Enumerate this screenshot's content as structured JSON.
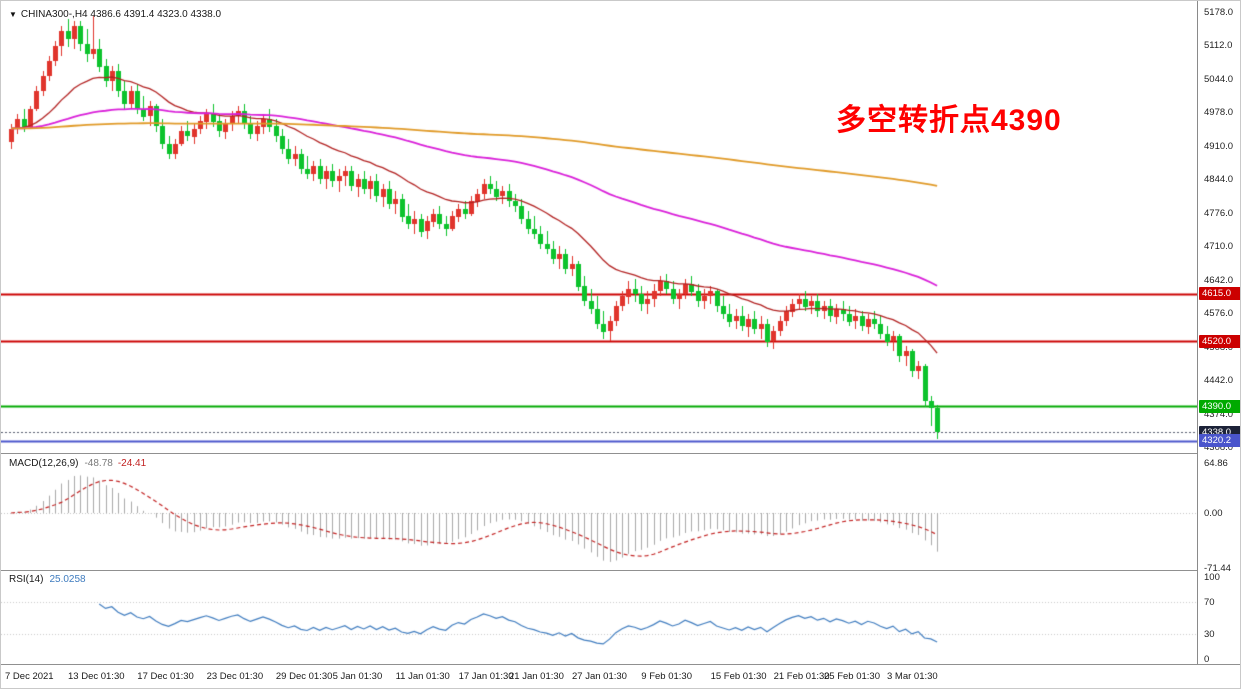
{
  "colors": {
    "background": "#ffffff",
    "up_candle": "#e0342c",
    "down_candle": "#0cc32c",
    "ma_fast": "#b22222",
    "ma_mid": "#d920d9",
    "ma_slow": "#e09a28",
    "macd_histogram": "#a8a8a8",
    "macd_signal": "#c22222",
    "rsi_line": "#3f7cbf",
    "level_red": "#cc0000",
    "level_green": "#00aa00",
    "level_blue": "#4a55cc",
    "annotation": "#ff0000",
    "axis_text": "#222222"
  },
  "symbol_info": {
    "expand_icon": "▼",
    "text": "CHINA300-,H4 4386.6 4391.4 4323.0 4338.0"
  },
  "annotation": {
    "text": "多空转折点4390",
    "color": "#ff0000"
  },
  "main_pane": {
    "y_ticks": [
      "5178.0",
      "5112.0",
      "5044.0",
      "4978.0",
      "4910.0",
      "4844.0",
      "4776.0",
      "4710.0",
      "4642.0",
      "4576.0",
      "4508.0",
      "4442.0",
      "4374.0",
      "4308.0"
    ],
    "badges": [
      {
        "label": "4615.0",
        "price": 4615.0,
        "color": "#cc0000"
      },
      {
        "label": "4520.0",
        "price": 4520.0,
        "color": "#cc0000"
      },
      {
        "label": "4390.0",
        "price": 4390.0,
        "color": "#00aa00"
      },
      {
        "label": "4338.0",
        "price": 4338.0,
        "color": "#1c2238"
      },
      {
        "label": "4320.2",
        "price": 4320.2,
        "color": "#4a55cc"
      }
    ]
  },
  "macd_pane": {
    "label": "MACD(12,26,9)",
    "value_main": "-48.78",
    "value_signal": "-24.41",
    "y_ticks": [
      "64.86",
      "0.00",
      "-71.44"
    ]
  },
  "rsi_pane": {
    "label": "RSI(14)",
    "value": "25.0258",
    "y_ticks": [
      "100",
      "70",
      "30",
      "0"
    ]
  },
  "x_axis": {
    "labels": [
      {
        "text": "7 Dec 2021",
        "bar": 0
      },
      {
        "text": "13 Dec 01:30",
        "bar": 10
      },
      {
        "text": "17 Dec 01:30",
        "bar": 21
      },
      {
        "text": "23 Dec 01:30",
        "bar": 32
      },
      {
        "text": "29 Dec 01:30",
        "bar": 43
      },
      {
        "text": "5 Jan 01:30",
        "bar": 52
      },
      {
        "text": "11 Jan 01:30",
        "bar": 62
      },
      {
        "text": "17 Jan 01:30",
        "bar": 72
      },
      {
        "text": "21 Jan 01:30",
        "bar": 80
      },
      {
        "text": "27 Jan 01:30",
        "bar": 90
      },
      {
        "text": "9 Feb 01:30",
        "bar": 101
      },
      {
        "text": "15 Feb 01:30",
        "bar": 112
      },
      {
        "text": "21 Feb 01:30",
        "bar": 122
      },
      {
        "text": "25 Feb 01:30",
        "bar": 130
      },
      {
        "text": "3 Mar 01:30",
        "bar": 140
      }
    ]
  },
  "chart_data": {
    "type": "candlestick",
    "symbol": "CHINA300-",
    "timeframe": "H4",
    "current_bar": {
      "open": 4386.6,
      "high": 4391.4,
      "low": 4323.0,
      "close": 4338.0
    },
    "y_range": [
      4296,
      5200
    ],
    "candle_convention": "red=up, green=down",
    "candles": [
      [
        4920,
        4955,
        4905,
        4945
      ],
      [
        4945,
        4975,
        4935,
        4965
      ],
      [
        4965,
        4985,
        4940,
        4950
      ],
      [
        4950,
        4990,
        4945,
        4985
      ],
      [
        4985,
        5030,
        4980,
        5020
      ],
      [
        5020,
        5060,
        5010,
        5050
      ],
      [
        5050,
        5090,
        5040,
        5080
      ],
      [
        5080,
        5120,
        5070,
        5110
      ],
      [
        5110,
        5150,
        5090,
        5140
      ],
      [
        5140,
        5165,
        5110,
        5125
      ],
      [
        5125,
        5160,
        5105,
        5150
      ],
      [
        5150,
        5160,
        5100,
        5115
      ],
      [
        5115,
        5145,
        5080,
        5095
      ],
      [
        5095,
        5170,
        5085,
        5105
      ],
      [
        5105,
        5125,
        5060,
        5070
      ],
      [
        5070,
        5085,
        5030,
        5040
      ],
      [
        5040,
        5070,
        5020,
        5060
      ],
      [
        5060,
        5075,
        5010,
        5020
      ],
      [
        5020,
        5040,
        4985,
        4995
      ],
      [
        4995,
        5030,
        4985,
        5020
      ],
      [
        5020,
        5035,
        4975,
        4985
      ],
      [
        4985,
        5010,
        4960,
        4970
      ],
      [
        4970,
        5000,
        4950,
        4990
      ],
      [
        4990,
        4995,
        4940,
        4950
      ],
      [
        4950,
        4965,
        4905,
        4915
      ],
      [
        4915,
        4930,
        4885,
        4895
      ],
      [
        4895,
        4925,
        4885,
        4915
      ],
      [
        4915,
        4950,
        4910,
        4940
      ],
      [
        4940,
        4960,
        4920,
        4930
      ],
      [
        4930,
        4955,
        4915,
        4945
      ],
      [
        4945,
        4970,
        4935,
        4960
      ],
      [
        4960,
        4985,
        4945,
        4975
      ],
      [
        4975,
        4995,
        4950,
        4960
      ],
      [
        4960,
        4975,
        4930,
        4940
      ],
      [
        4940,
        4965,
        4925,
        4955
      ],
      [
        4955,
        4980,
        4940,
        4970
      ],
      [
        4970,
        4990,
        4955,
        4980
      ],
      [
        4980,
        4995,
        4945,
        4955
      ],
      [
        4955,
        4970,
        4925,
        4935
      ],
      [
        4935,
        4960,
        4920,
        4950
      ],
      [
        4950,
        4975,
        4935,
        4965
      ],
      [
        4965,
        4985,
        4940,
        4950
      ],
      [
        4950,
        4965,
        4920,
        4930
      ],
      [
        4930,
        4945,
        4895,
        4905
      ],
      [
        4905,
        4925,
        4875,
        4885
      ],
      [
        4885,
        4910,
        4870,
        4895
      ],
      [
        4895,
        4905,
        4855,
        4865
      ],
      [
        4865,
        4890,
        4845,
        4855
      ],
      [
        4855,
        4880,
        4840,
        4870
      ],
      [
        4870,
        4885,
        4835,
        4845
      ],
      [
        4845,
        4870,
        4825,
        4860
      ],
      [
        4860,
        4875,
        4830,
        4840
      ],
      [
        4840,
        4865,
        4820,
        4850
      ],
      [
        4850,
        4870,
        4830,
        4860
      ],
      [
        4860,
        4870,
        4820,
        4830
      ],
      [
        4830,
        4855,
        4810,
        4845
      ],
      [
        4845,
        4860,
        4815,
        4825
      ],
      [
        4825,
        4850,
        4805,
        4840
      ],
      [
        4840,
        4855,
        4800,
        4810
      ],
      [
        4810,
        4835,
        4790,
        4825
      ],
      [
        4825,
        4840,
        4785,
        4795
      ],
      [
        4795,
        4820,
        4775,
        4805
      ],
      [
        4805,
        4815,
        4760,
        4770
      ],
      [
        4770,
        4795,
        4745,
        4755
      ],
      [
        4755,
        4780,
        4735,
        4765
      ],
      [
        4765,
        4775,
        4730,
        4740
      ],
      [
        4740,
        4770,
        4725,
        4760
      ],
      [
        4760,
        4785,
        4750,
        4775
      ],
      [
        4775,
        4790,
        4745,
        4755
      ],
      [
        4755,
        4770,
        4730,
        4745
      ],
      [
        4745,
        4780,
        4740,
        4770
      ],
      [
        4770,
        4795,
        4760,
        4785
      ],
      [
        4785,
        4800,
        4765,
        4775
      ],
      [
        4775,
        4810,
        4770,
        4800
      ],
      [
        4800,
        4825,
        4790,
        4815
      ],
      [
        4815,
        4845,
        4805,
        4835
      ],
      [
        4835,
        4850,
        4815,
        4825
      ],
      [
        4825,
        4840,
        4800,
        4810
      ],
      [
        4810,
        4830,
        4795,
        4820
      ],
      [
        4820,
        4835,
        4790,
        4800
      ],
      [
        4800,
        4815,
        4780,
        4790
      ],
      [
        4790,
        4805,
        4755,
        4765
      ],
      [
        4765,
        4780,
        4735,
        4745
      ],
      [
        4745,
        4770,
        4725,
        4735
      ],
      [
        4735,
        4750,
        4705,
        4715
      ],
      [
        4715,
        4740,
        4695,
        4705
      ],
      [
        4705,
        4720,
        4675,
        4685
      ],
      [
        4685,
        4710,
        4665,
        4695
      ],
      [
        4695,
        4705,
        4655,
        4665
      ],
      [
        4665,
        4690,
        4650,
        4675
      ],
      [
        4675,
        4680,
        4620,
        4630
      ],
      [
        4630,
        4650,
        4590,
        4600
      ],
      [
        4600,
        4625,
        4575,
        4585
      ],
      [
        4585,
        4610,
        4545,
        4555
      ],
      [
        4555,
        4580,
        4525,
        4540
      ],
      [
        4540,
        4570,
        4520,
        4560
      ],
      [
        4560,
        4600,
        4550,
        4590
      ],
      [
        4590,
        4620,
        4580,
        4610
      ],
      [
        4610,
        4640,
        4595,
        4625
      ],
      [
        4625,
        4645,
        4600,
        4615
      ],
      [
        4615,
        4630,
        4580,
        4595
      ],
      [
        4595,
        4620,
        4575,
        4605
      ],
      [
        4605,
        4635,
        4590,
        4620
      ],
      [
        4620,
        4650,
        4610,
        4640
      ],
      [
        4640,
        4655,
        4615,
        4625
      ],
      [
        4625,
        4640,
        4595,
        4605
      ],
      [
        4605,
        4625,
        4585,
        4615
      ],
      [
        4615,
        4645,
        4605,
        4635
      ],
      [
        4635,
        4650,
        4610,
        4620
      ],
      [
        4620,
        4635,
        4590,
        4600
      ],
      [
        4600,
        4625,
        4585,
        4610
      ],
      [
        4610,
        4630,
        4595,
        4620
      ],
      [
        4620,
        4625,
        4580,
        4590
      ],
      [
        4590,
        4610,
        4565,
        4575
      ],
      [
        4575,
        4595,
        4550,
        4560
      ],
      [
        4560,
        4585,
        4545,
        4570
      ],
      [
        4570,
        4590,
        4540,
        4550
      ],
      [
        4550,
        4575,
        4530,
        4565
      ],
      [
        4565,
        4580,
        4535,
        4545
      ],
      [
        4545,
        4570,
        4525,
        4555
      ],
      [
        4555,
        4565,
        4510,
        4520
      ],
      [
        4520,
        4550,
        4505,
        4540
      ],
      [
        4540,
        4570,
        4530,
        4560
      ],
      [
        4560,
        4590,
        4550,
        4580
      ],
      [
        4580,
        4605,
        4570,
        4595
      ],
      [
        4595,
        4615,
        4585,
        4605
      ],
      [
        4605,
        4620,
        4580,
        4590
      ],
      [
        4590,
        4610,
        4575,
        4600
      ],
      [
        4600,
        4615,
        4570,
        4580
      ],
      [
        4580,
        4600,
        4565,
        4590
      ],
      [
        4590,
        4605,
        4560,
        4570
      ],
      [
        4570,
        4595,
        4555,
        4585
      ],
      [
        4585,
        4600,
        4560,
        4575
      ],
      [
        4575,
        4590,
        4550,
        4560
      ],
      [
        4560,
        4585,
        4545,
        4570
      ],
      [
        4570,
        4580,
        4540,
        4550
      ],
      [
        4550,
        4575,
        4535,
        4565
      ],
      [
        4565,
        4580,
        4545,
        4555
      ],
      [
        4555,
        4570,
        4525,
        4535
      ],
      [
        4535,
        4550,
        4510,
        4520
      ],
      [
        4520,
        4540,
        4500,
        4530
      ],
      [
        4530,
        4535,
        4480,
        4490
      ],
      [
        4490,
        4510,
        4470,
        4500
      ],
      [
        4500,
        4505,
        4450,
        4460
      ],
      [
        4460,
        4480,
        4445,
        4470
      ],
      [
        4470,
        4475,
        4390,
        4400
      ],
      [
        4400,
        4410,
        4350,
        4387
      ],
      [
        4386.6,
        4391.4,
        4323.0,
        4338.0
      ]
    ],
    "moving_averages": [
      {
        "name": "fast",
        "period": 21,
        "color": "#b22222",
        "width": 1.3
      },
      {
        "name": "mid",
        "period": 90,
        "color": "#d920d9",
        "width": 1.8
      },
      {
        "name": "slow",
        "period": 400,
        "color": "#e09a28",
        "width": 1.8
      }
    ],
    "levels": [
      {
        "price": 4615.0,
        "color": "#cc0000",
        "style": "solid",
        "width": 2
      },
      {
        "price": 4520.0,
        "color": "#cc0000",
        "style": "solid",
        "width": 2
      },
      {
        "price": 4390.0,
        "color": "#00aa00",
        "style": "solid",
        "width": 2
      },
      {
        "price": 4338.0,
        "color": "#565c6e",
        "style": "dotted",
        "width": 1
      },
      {
        "price": 4320.2,
        "color": "#4a55cc",
        "style": "solid",
        "width": 2
      }
    ],
    "macd": {
      "fast": 12,
      "slow": 26,
      "signal": 9,
      "display": [
        -48.78,
        -24.41
      ],
      "axis_range": [
        -71.44,
        64.86
      ]
    },
    "rsi": {
      "period": 14,
      "display": 25.0258,
      "levels": [
        30,
        70
      ],
      "axis_range": [
        0,
        100
      ]
    }
  }
}
